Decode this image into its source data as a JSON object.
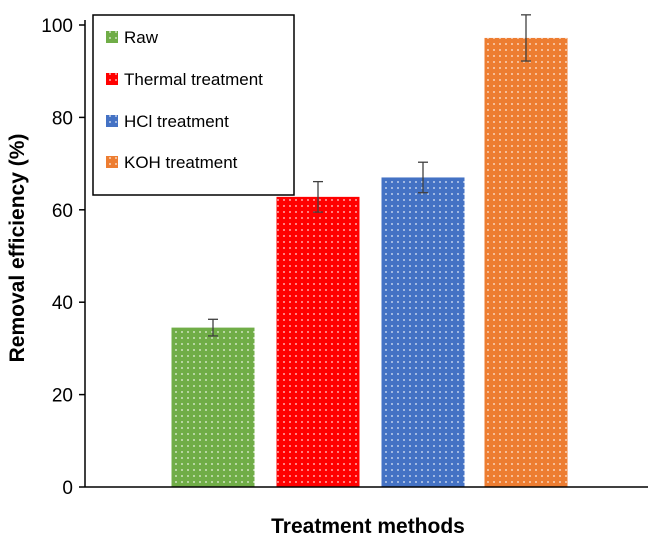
{
  "chart_data": {
    "type": "bar",
    "title": "",
    "xlabel": "Treatment methods",
    "ylabel": "Removal efficiency (%)",
    "ylim": [
      0,
      100
    ],
    "yticks": [
      0,
      20,
      40,
      60,
      80,
      100
    ],
    "grid": false,
    "legend_position": "top-left",
    "series": [
      {
        "name": "Raw",
        "value": 34.5,
        "error": 1.8,
        "color": "#70AD47"
      },
      {
        "name": "Thermal treatment",
        "value": 62.8,
        "error": 3.3,
        "color": "#FF0000"
      },
      {
        "name": "HCl treatment",
        "value": 67.0,
        "error": 3.3,
        "color": "#4472C4"
      },
      {
        "name": "KOH treatment",
        "value": 97.2,
        "error": 5.0,
        "color": "#ED7D31"
      }
    ]
  }
}
